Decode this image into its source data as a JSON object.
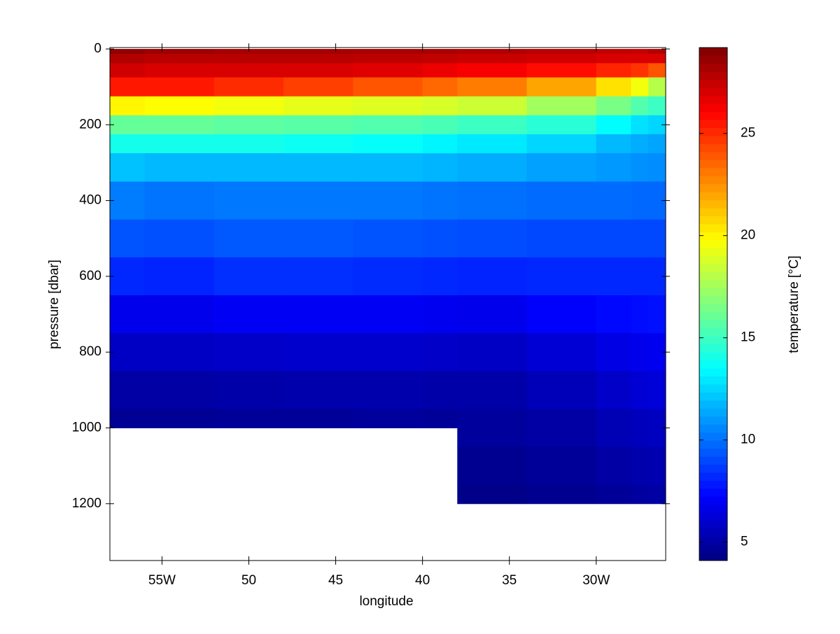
{
  "chart_data": {
    "type": "contour",
    "xlabel": "longitude",
    "ylabel": "pressure [dbar]",
    "colorbar_label": "temperature [°C]",
    "x": [
      -58,
      -56,
      -52,
      -48,
      -44,
      -40,
      -38,
      -34,
      -30,
      -28,
      -27
    ],
    "y": [
      0,
      25,
      50,
      100,
      150,
      200,
      250,
      300,
      400,
      500,
      600,
      700,
      800,
      900,
      1000,
      1100,
      1200
    ],
    "values": [
      [
        28.8,
        28,
        27.2,
        25.5,
        20,
        16,
        14,
        12,
        10.3,
        9.3,
        8.2,
        6.8,
        5.8,
        5,
        4.6,
        null,
        null
      ],
      [
        28.5,
        27.8,
        27,
        25.5,
        19.8,
        16,
        14,
        11.8,
        10.1,
        9.2,
        8.1,
        6.8,
        5.8,
        5,
        4.6,
        null,
        null
      ],
      [
        28.3,
        27.8,
        27,
        25,
        19.5,
        15.8,
        14,
        11.8,
        10.2,
        9.4,
        8.4,
        7,
        5.9,
        5.1,
        4.7,
        null,
        null
      ],
      [
        28.3,
        27.8,
        27,
        24.5,
        19.2,
        15.7,
        13.8,
        11.8,
        10.2,
        9.4,
        8.4,
        7,
        6,
        5.2,
        4.7,
        null,
        null
      ],
      [
        28.2,
        27.7,
        26.8,
        24,
        19,
        15.5,
        13.6,
        11.8,
        10.2,
        9.3,
        8.3,
        7,
        6,
        5.2,
        4.8,
        null,
        null
      ],
      [
        28.2,
        27.6,
        26.5,
        23.5,
        18.8,
        15.3,
        13.3,
        11.7,
        10.1,
        9.2,
        8.2,
        6.9,
        5.9,
        5.1,
        4.7,
        null,
        null
      ],
      [
        28,
        27.4,
        26.2,
        23,
        18.5,
        15,
        13,
        11.5,
        10,
        9.1,
        8.1,
        6.8,
        5.8,
        5.1,
        4.8,
        4.5,
        4.3
      ],
      [
        27.8,
        27.2,
        25.8,
        22,
        17.5,
        14.5,
        12.5,
        11.2,
        9.9,
        9,
        8.2,
        7.2,
        6.2,
        5.5,
        5,
        4.7,
        4.5
      ],
      [
        27.6,
        27,
        25.2,
        20.5,
        16.5,
        13.5,
        11.8,
        11,
        9.9,
        9,
        8.2,
        7.4,
        6.6,
        5.9,
        5.4,
        5,
        4.7
      ],
      [
        27.5,
        27,
        24.8,
        19.5,
        15.5,
        12.8,
        11.5,
        10.8,
        9.8,
        9,
        8.2,
        7.5,
        6.8,
        6.2,
        5.6,
        5.2,
        4.9
      ],
      [
        28,
        27,
        24,
        18,
        15,
        12.5,
        11.3,
        10.7,
        9.8,
        9,
        8.2,
        7.6,
        6.9,
        6.3,
        5.7,
        5.3,
        5
      ]
    ],
    "xlim": [
      -58,
      -26
    ],
    "ylim": [
      0,
      1350
    ],
    "y_reversed": true,
    "xticks": [
      {
        "value": -55,
        "label": "55W"
      },
      {
        "value": -50,
        "label": "50"
      },
      {
        "value": -45,
        "label": "45"
      },
      {
        "value": -40,
        "label": "40"
      },
      {
        "value": -35,
        "label": "35"
      },
      {
        "value": -30,
        "label": "30W"
      }
    ],
    "yticks": [
      0,
      200,
      400,
      600,
      800,
      1000,
      1200
    ],
    "clim": [
      4.1,
      29.2
    ],
    "cticks": [
      5,
      10,
      15,
      20,
      25
    ],
    "colormap": "jet"
  }
}
